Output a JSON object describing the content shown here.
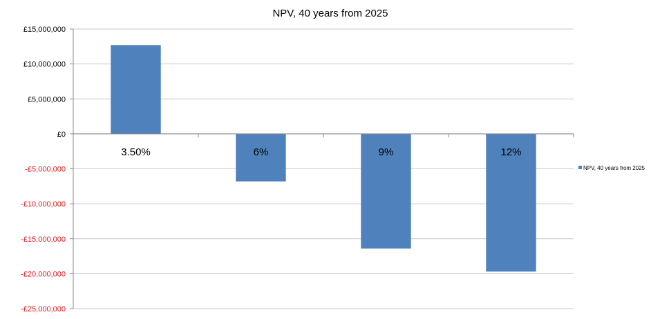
{
  "chart_data": {
    "type": "bar",
    "title": "NPV, 40 years from 2025",
    "categories": [
      "3.50%",
      "6%",
      "9%",
      "12%"
    ],
    "series": [
      {
        "name": "NPV, 40 years from 2025",
        "values": [
          12700000,
          -6800000,
          -16400000,
          -19700000
        ]
      }
    ],
    "ylim": [
      -25000000,
      15000000
    ],
    "y_ticks": [
      15000000,
      10000000,
      5000000,
      0,
      -5000000,
      -10000000,
      -15000000,
      -20000000,
      -25000000
    ],
    "y_tick_labels": [
      "£15,000,000",
      "£10,000,000",
      "£5,000,000",
      "£0",
      "-£5,000,000",
      "-£10,000,000",
      "-£15,000,000",
      "-£20,000,000",
      "-£25,000,000"
    ],
    "xlabel": "",
    "ylabel": "",
    "grid": true,
    "legend": "right",
    "colors": {
      "bar": "#4f81bd",
      "negative_tick": "#e0181b",
      "positive_tick": "#000000",
      "grid": "#c8c8c8",
      "axis": "#888888"
    }
  }
}
